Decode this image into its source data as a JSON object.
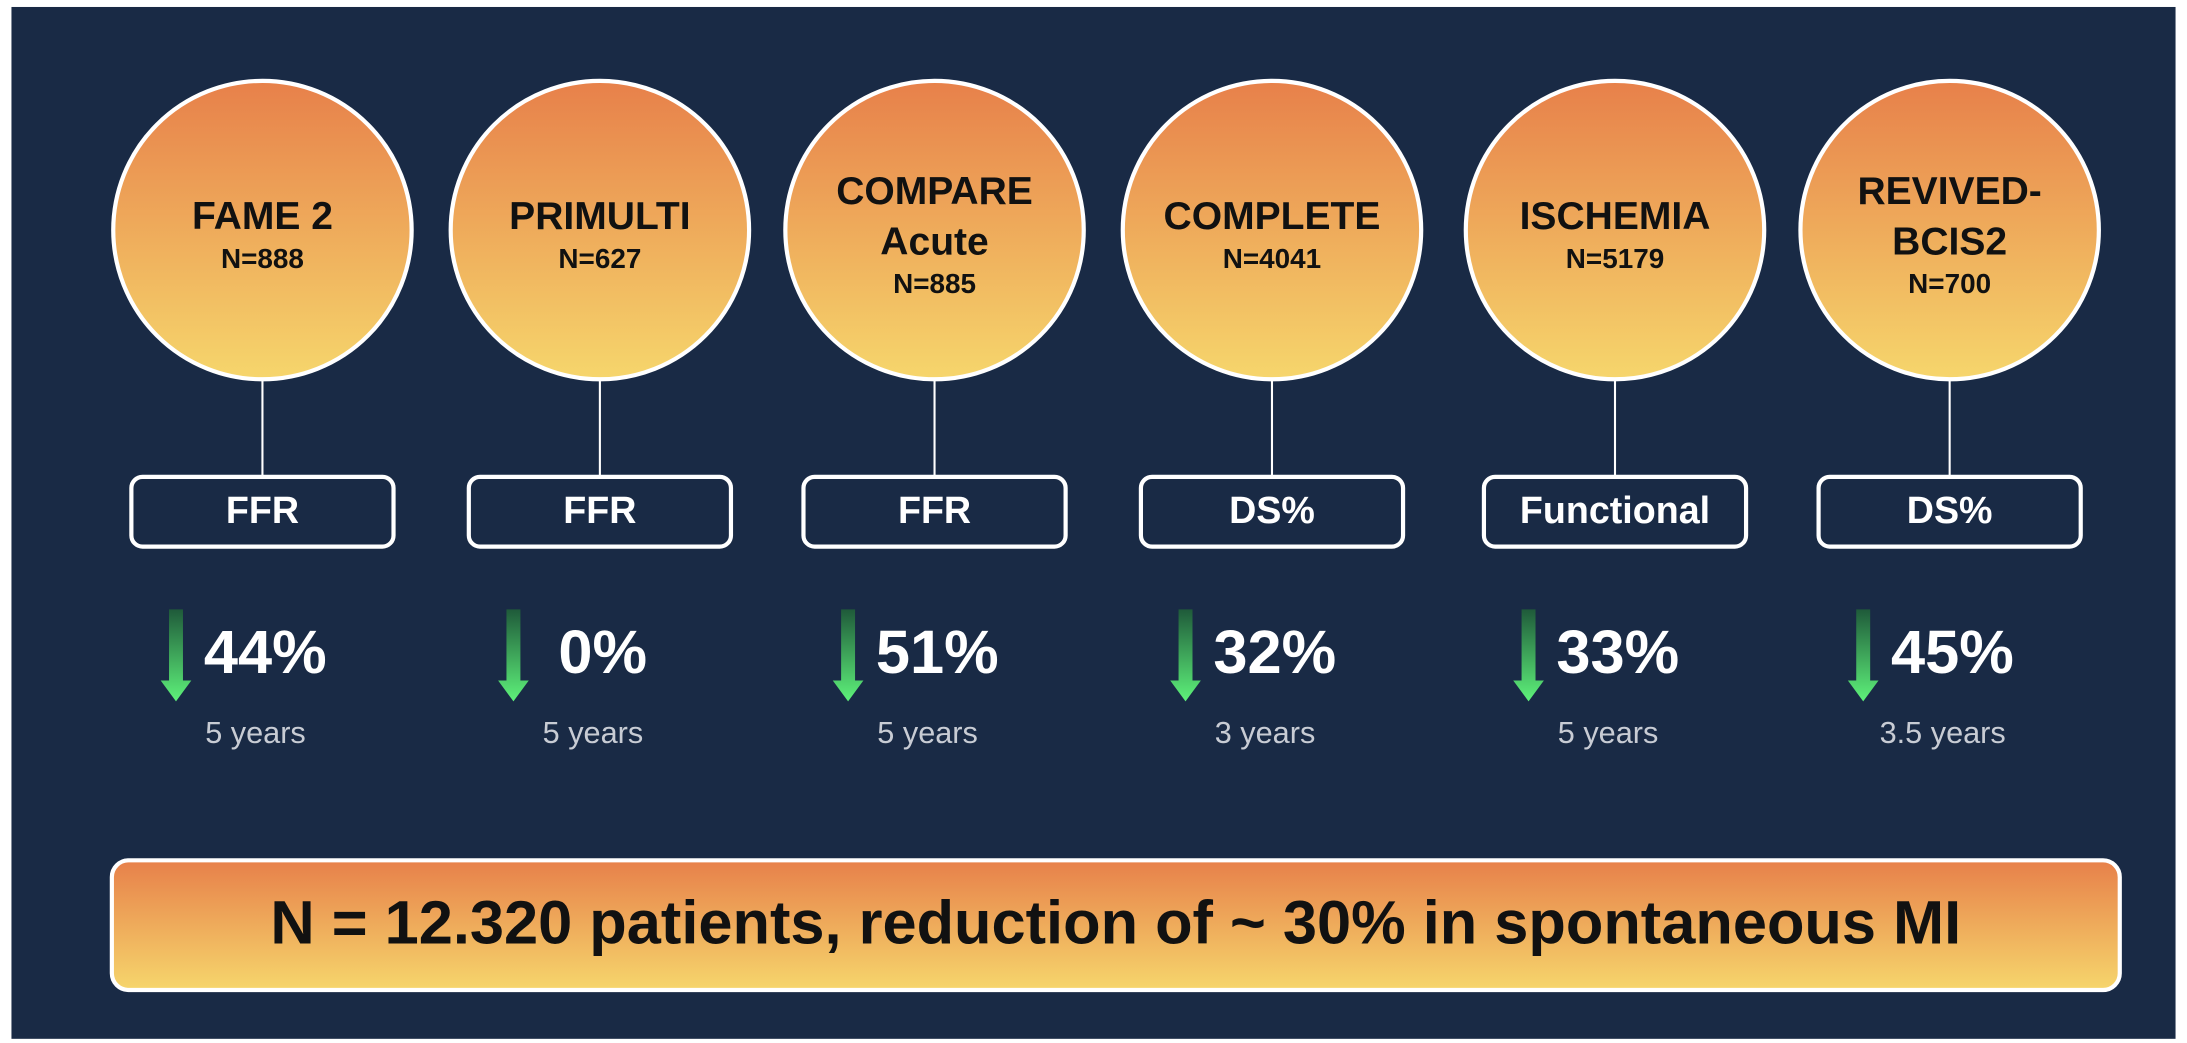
{
  "trials": [
    {
      "name_lines": [
        "FAME 2"
      ],
      "n": "N=888",
      "method": "FFR",
      "reduction": "44%",
      "duration": "5 years"
    },
    {
      "name_lines": [
        "PRIMULTI"
      ],
      "n": "N=627",
      "method": "FFR",
      "reduction": "0%",
      "duration": "5 years"
    },
    {
      "name_lines": [
        "COMPARE",
        "Acute"
      ],
      "n": "N=885",
      "method": "FFR",
      "reduction": "51%",
      "duration": "5 years"
    },
    {
      "name_lines": [
        "COMPLETE"
      ],
      "n": "N=4041",
      "method": "DS%",
      "reduction": "32%",
      "duration": "3 years"
    },
    {
      "name_lines": [
        "ISCHEMIA"
      ],
      "n": "N=5179",
      "method": "Functional",
      "reduction": "33%",
      "duration": "5 years"
    },
    {
      "name_lines": [
        "REVIVED-",
        "BCIS2"
      ],
      "n": "N=700",
      "method": "DS%",
      "reduction": "45%",
      "duration": "3.5 years"
    }
  ],
  "summary": "N = 12.320 patients, reduction of ~ 30% in spontaneous MI"
}
